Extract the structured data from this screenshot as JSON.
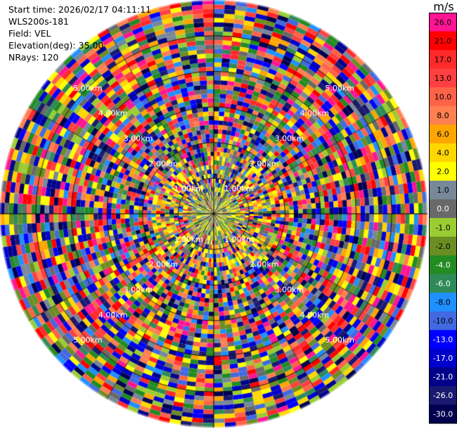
{
  "info": {
    "start_time": "Start time: 2026/02/17 04:11:11",
    "instrument": "WLS200s-181",
    "field": "Field: VEL",
    "elevation": "Elevation(deg): 35.00",
    "nrays": "NRays: 120"
  },
  "colorbar": {
    "unit": "m/s",
    "levels": [
      {
        "label": "26.0",
        "color": "#ff1493"
      },
      {
        "label": "21.0",
        "color": "#ff0000"
      },
      {
        "label": "17.0",
        "color": "#ff2a2a"
      },
      {
        "label": "13.0",
        "color": "#ff4040"
      },
      {
        "label": "10.0",
        "color": "#ff6347"
      },
      {
        "label": "8.0",
        "color": "#ff7f50"
      },
      {
        "label": "6.0",
        "color": "#ffa500"
      },
      {
        "label": "4.0",
        "color": "#ffd700"
      },
      {
        "label": "2.0",
        "color": "#ffff00"
      },
      {
        "label": "1.0",
        "color": "#778899"
      },
      {
        "label": "0.0",
        "color": "#696969"
      },
      {
        "label": "-1.0",
        "color": "#9acd32"
      },
      {
        "label": "-2.0",
        "color": "#6b8e23"
      },
      {
        "label": "-4.0",
        "color": "#228b22"
      },
      {
        "label": "-6.0",
        "color": "#2e8b57"
      },
      {
        "label": "-8.0",
        "color": "#1e90ff"
      },
      {
        "label": "-10.0",
        "color": "#4169e1"
      },
      {
        "label": "-13.0",
        "color": "#0000ff"
      },
      {
        "label": "-17.0",
        "color": "#0000cd"
      },
      {
        "label": "-21.0",
        "color": "#00008b"
      },
      {
        "label": "-26.0",
        "color": "#191970"
      },
      {
        "label": "-30.0",
        "color": "#000050"
      }
    ]
  },
  "chart_data": {
    "type": "heatmap",
    "projection": "polar-ppi",
    "field": "VEL",
    "nrays": 120,
    "range_rings_km": [
      1,
      2,
      3,
      4,
      5
    ],
    "ring_labels": {
      "1": "1.00km",
      "2": "2.00km",
      "3": "3.00km",
      "4": "4.00km",
      "5": "5.00km"
    },
    "max_range_km": 6.0,
    "gates_per_ray": 48,
    "data_description": "Noisy radial velocity values spanning -30 to 26 m/s (mostly noise; low-magnitude returns near center)"
  }
}
